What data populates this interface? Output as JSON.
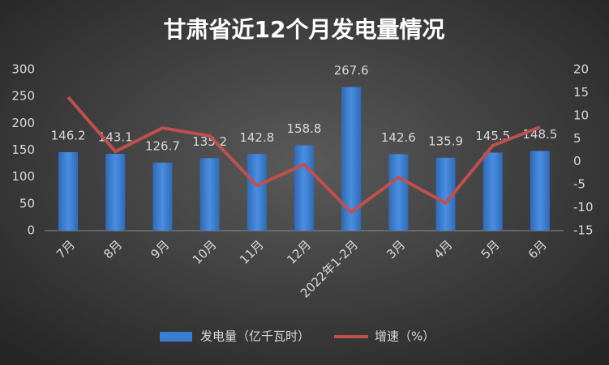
{
  "chart_data": {
    "type": "bar",
    "title": "甘肃省近12个月发电量情况",
    "categories": [
      "7月",
      "8月",
      "9月",
      "10月",
      "11月",
      "12月",
      "2022年1-2月",
      "3月",
      "4月",
      "5月",
      "6月"
    ],
    "series": [
      {
        "name": "发电量（亿千瓦时）",
        "type": "bar",
        "color": "#3b7dd0",
        "values": [
          146.2,
          143.1,
          126.7,
          135.2,
          142.8,
          158.8,
          267.6,
          142.6,
          135.9,
          145.5,
          148.5
        ]
      },
      {
        "name": "增速（%）",
        "type": "line",
        "axis": "y2",
        "color": "#c0504d",
        "values": [
          14.0,
          2.2,
          7.3,
          5.6,
          -5.2,
          -0.6,
          -11.0,
          -3.4,
          -9.0,
          3.5,
          7.5
        ]
      }
    ],
    "ylim": [
      0,
      300
    ],
    "yticks": [
      0,
      50,
      100,
      150,
      200,
      250,
      300
    ],
    "y2lim": [
      -15,
      20
    ],
    "y2ticks": [
      -15,
      -10,
      -5,
      0,
      5,
      10,
      15,
      20
    ],
    "legend": "bottom"
  }
}
